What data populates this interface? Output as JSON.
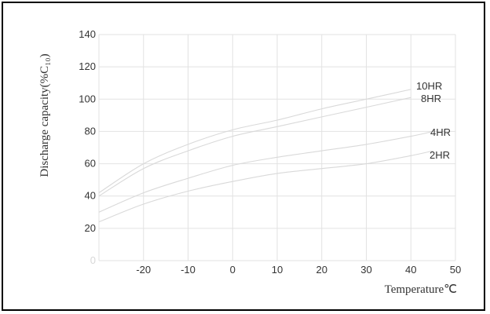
{
  "chart_data": {
    "type": "line",
    "title": "",
    "xlabel": "Temperature℃",
    "ylabel": "Discharge capacity(%C₁₀)",
    "xlim": [
      -30,
      50
    ],
    "ylim": [
      0,
      140
    ],
    "x_ticks": [
      -20,
      -10,
      0,
      10,
      20,
      30,
      40,
      50
    ],
    "y_ticks": [
      0,
      20,
      40,
      60,
      80,
      100,
      120,
      140
    ],
    "grid": true,
    "series": [
      {
        "name": "10HR",
        "x": [
          -30,
          -20,
          -10,
          0,
          10,
          20,
          30,
          40
        ],
        "y": [
          42,
          60,
          72,
          81,
          87,
          94,
          100,
          106
        ]
      },
      {
        "name": "8HR",
        "x": [
          -30,
          -20,
          -10,
          0,
          10,
          20,
          30,
          40
        ],
        "y": [
          40,
          57,
          68,
          77,
          83,
          89,
          95,
          101
        ]
      },
      {
        "name": "4HR",
        "x": [
          -30,
          -20,
          -10,
          0,
          10,
          20,
          30,
          40,
          45
        ],
        "y": [
          30,
          42,
          51,
          59,
          64,
          68,
          72,
          77,
          80
        ]
      },
      {
        "name": "2HR",
        "x": [
          -30,
          -20,
          -10,
          0,
          10,
          20,
          30,
          40,
          45
        ],
        "y": [
          24,
          35,
          43,
          49,
          54,
          57,
          60,
          65,
          68
        ]
      }
    ],
    "colors": {
      "axis": "#333333",
      "grid": "#e2e2e2",
      "curve": "#d9d9d9"
    }
  }
}
